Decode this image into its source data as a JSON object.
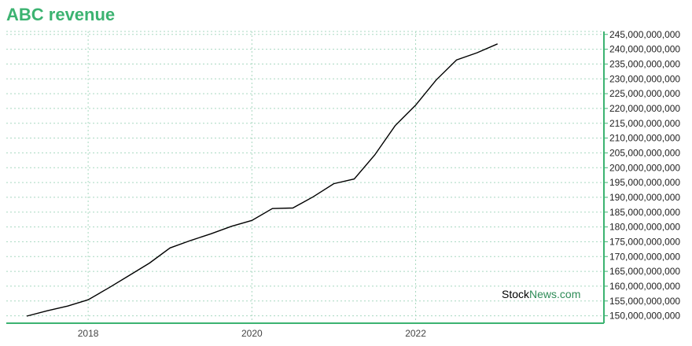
{
  "title": "ABC revenue",
  "watermark": {
    "part1": "Stock",
    "part2": "News",
    "part3": ".com"
  },
  "colors": {
    "accent": "#3cb371",
    "line": "#000000",
    "grid": "#a8d8c0",
    "watermark_green": "#2e8b57"
  },
  "chart_data": {
    "type": "line",
    "title": "ABC revenue",
    "xlabel": "",
    "ylabel": "",
    "xlim": [
      2017.0,
      2024.3
    ],
    "ylim": [
      147500000000,
      246000000000
    ],
    "x_ticks": [
      2018,
      2020,
      2022
    ],
    "y_ticks": [
      150000000000,
      155000000000,
      160000000000,
      165000000000,
      170000000000,
      175000000000,
      180000000000,
      185000000000,
      190000000000,
      195000000000,
      200000000000,
      205000000000,
      210000000000,
      215000000000,
      220000000000,
      225000000000,
      230000000000,
      235000000000,
      240000000000,
      245000000000
    ],
    "y_tick_labels": [
      "150,000,000,000",
      "155,000,000,000",
      "160,000,000,000",
      "165,000,000,000",
      "170,000,000,000",
      "175,000,000,000",
      "180,000,000,000",
      "185,000,000,000",
      "190,000,000,000",
      "195,000,000,000",
      "200,000,000,000",
      "205,000,000,000",
      "210,000,000,000",
      "215,000,000,000",
      "220,000,000,000",
      "225,000,000,000",
      "230,000,000,000",
      "235,000,000,000",
      "240,000,000,000",
      "245,000,000,000"
    ],
    "grid": true,
    "y_axis_side": "right",
    "series": [
      {
        "x": [
          2017.25,
          2017.5,
          2017.75,
          2018.0,
          2018.25,
          2018.5,
          2018.75,
          2019.0,
          2019.25,
          2019.5,
          2019.75,
          2020.0,
          2020.25,
          2020.5,
          2020.75,
          2021.0,
          2021.25,
          2021.5,
          2021.75,
          2022.0,
          2022.25,
          2022.5,
          2022.75,
          2023.0
        ],
        "values": [
          149900000000,
          151700000000,
          153300000000,
          155400000000,
          159400000000,
          163600000000,
          167800000000,
          172900000000,
          175400000000,
          177700000000,
          180200000000,
          182200000000,
          186200000000,
          186400000000,
          190200000000,
          194600000000,
          196200000000,
          204300000000,
          214200000000,
          221100000000,
          229600000000,
          236400000000,
          238800000000,
          241800000000
        ]
      }
    ]
  }
}
